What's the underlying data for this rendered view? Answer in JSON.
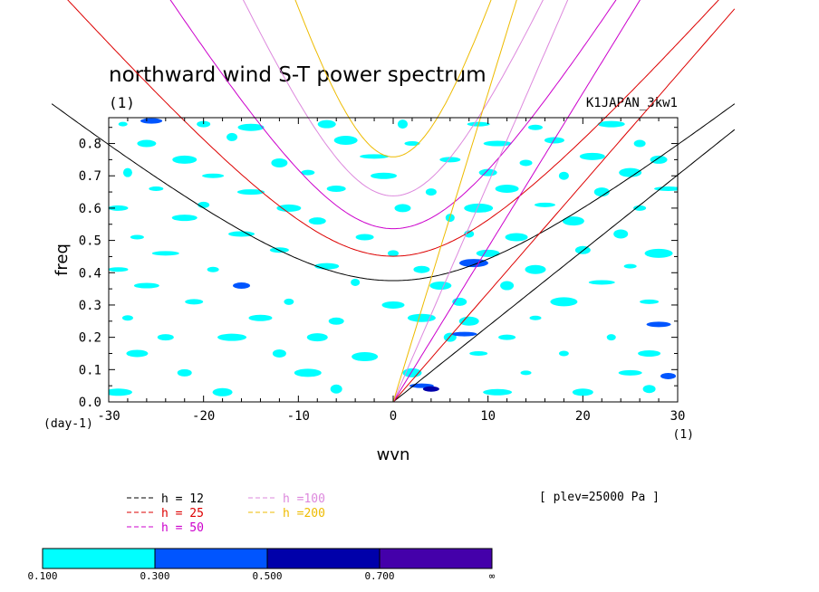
{
  "chart_data": {
    "type": "heatmap",
    "title": "northward wind S-T power spectrum",
    "subtitle_left": "(1)",
    "subtitle_right": "K1JAPAN_3kw1",
    "xlabel": "wvn",
    "ylabel": "freq",
    "x_unit_label": "(1)",
    "y_unit_label": "(day-1)",
    "xlim": [
      -30,
      30
    ],
    "ylim": [
      0.0,
      0.88
    ],
    "x_ticks": [
      -30,
      -20,
      -10,
      0,
      10,
      20,
      30
    ],
    "x_tick_labels": [
      "-30",
      "-20",
      "-10",
      "0",
      "10",
      "20",
      "30"
    ],
    "y_ticks": [
      0.0,
      0.1,
      0.2,
      0.3,
      0.4,
      0.5,
      0.6,
      0.7,
      0.8
    ],
    "y_tick_labels": [
      "0.0",
      "0.1",
      "0.2",
      "0.3",
      "0.4",
      "0.5",
      "0.6",
      "0.7",
      "0.8"
    ],
    "annotation": "[ plev=25000 Pa ]",
    "colorbar": {
      "levels": [
        "0.100",
        "0.300",
        "0.500",
        "0.700",
        "∞"
      ],
      "colors": [
        "#00ffff",
        "#0055ff",
        "#0000aa",
        "#4400aa"
      ]
    },
    "dispersion_curves": [
      {
        "label": "h = 12",
        "color": "#000000",
        "equivalent_depth_m": 12,
        "families": [
          "inertio-gravity n=1",
          "kelvin"
        ]
      },
      {
        "label": "h = 25",
        "color": "#dd0000",
        "equivalent_depth_m": 25,
        "families": [
          "inertio-gravity n=1",
          "kelvin"
        ]
      },
      {
        "label": "h = 50",
        "color": "#cc00cc",
        "equivalent_depth_m": 50,
        "families": [
          "inertio-gravity n=1",
          "kelvin"
        ]
      },
      {
        "label": "h =100",
        "color": "#dd88dd",
        "equivalent_depth_m": 100,
        "families": [
          "inertio-gravity n=1",
          "kelvin"
        ]
      },
      {
        "label": "h =200",
        "color": "#eebb00",
        "equivalent_depth_m": 200,
        "families": [
          "inertio-gravity n=1",
          "kelvin"
        ]
      }
    ],
    "power_patches": [
      {
        "x": -28.5,
        "y": 0.86,
        "level": 0
      },
      {
        "x": -25.5,
        "y": 0.87,
        "level": 1
      },
      {
        "x": -20,
        "y": 0.86,
        "level": 0
      },
      {
        "x": -15,
        "y": 0.85,
        "level": 0
      },
      {
        "x": -7,
        "y": 0.86,
        "level": 0
      },
      {
        "x": 1,
        "y": 0.86,
        "level": 0
      },
      {
        "x": 9,
        "y": 0.86,
        "level": 0
      },
      {
        "x": 15,
        "y": 0.85,
        "level": 0
      },
      {
        "x": 23,
        "y": 0.86,
        "level": 0
      },
      {
        "x": -26,
        "y": 0.8,
        "level": 0
      },
      {
        "x": -17,
        "y": 0.82,
        "level": 0
      },
      {
        "x": -5,
        "y": 0.81,
        "level": 0
      },
      {
        "x": 2,
        "y": 0.8,
        "level": 0
      },
      {
        "x": 11,
        "y": 0.8,
        "level": 0
      },
      {
        "x": 17,
        "y": 0.81,
        "level": 0
      },
      {
        "x": 26,
        "y": 0.8,
        "level": 0
      },
      {
        "x": -22,
        "y": 0.75,
        "level": 0
      },
      {
        "x": -12,
        "y": 0.74,
        "level": 0
      },
      {
        "x": -2,
        "y": 0.76,
        "level": 0
      },
      {
        "x": 6,
        "y": 0.75,
        "level": 0
      },
      {
        "x": 14,
        "y": 0.74,
        "level": 0
      },
      {
        "x": 21,
        "y": 0.76,
        "level": 0
      },
      {
        "x": 28,
        "y": 0.75,
        "level": 0
      },
      {
        "x": -28,
        "y": 0.71,
        "level": 0
      },
      {
        "x": -19,
        "y": 0.7,
        "level": 0
      },
      {
        "x": -9,
        "y": 0.71,
        "level": 0
      },
      {
        "x": -1,
        "y": 0.7,
        "level": 0
      },
      {
        "x": 10,
        "y": 0.71,
        "level": 0
      },
      {
        "x": 18,
        "y": 0.7,
        "level": 0
      },
      {
        "x": 25,
        "y": 0.71,
        "level": 0
      },
      {
        "x": -25,
        "y": 0.66,
        "level": 0
      },
      {
        "x": -15,
        "y": 0.65,
        "level": 0
      },
      {
        "x": -6,
        "y": 0.66,
        "level": 0
      },
      {
        "x": 4,
        "y": 0.65,
        "level": 0
      },
      {
        "x": 12,
        "y": 0.66,
        "level": 0
      },
      {
        "x": 22,
        "y": 0.65,
        "level": 0
      },
      {
        "x": 29,
        "y": 0.66,
        "level": 0
      },
      {
        "x": -29,
        "y": 0.6,
        "level": 0
      },
      {
        "x": -20,
        "y": 0.61,
        "level": 0
      },
      {
        "x": -11,
        "y": 0.6,
        "level": 0
      },
      {
        "x": 1,
        "y": 0.6,
        "level": 0
      },
      {
        "x": 9,
        "y": 0.6,
        "level": 0
      },
      {
        "x": 16,
        "y": 0.61,
        "level": 0
      },
      {
        "x": 26,
        "y": 0.6,
        "level": 0
      },
      {
        "x": -22,
        "y": 0.57,
        "level": 0
      },
      {
        "x": -8,
        "y": 0.56,
        "level": 0
      },
      {
        "x": 6,
        "y": 0.57,
        "level": 0
      },
      {
        "x": 19,
        "y": 0.56,
        "level": 0
      },
      {
        "x": -27,
        "y": 0.51,
        "level": 0
      },
      {
        "x": -16,
        "y": 0.52,
        "level": 0
      },
      {
        "x": -3,
        "y": 0.51,
        "level": 0
      },
      {
        "x": 8,
        "y": 0.52,
        "level": 0
      },
      {
        "x": 13,
        "y": 0.51,
        "level": 0
      },
      {
        "x": 24,
        "y": 0.52,
        "level": 0
      },
      {
        "x": -24,
        "y": 0.46,
        "level": 0
      },
      {
        "x": -12,
        "y": 0.47,
        "level": 0
      },
      {
        "x": 0,
        "y": 0.46,
        "level": 0
      },
      {
        "x": 10,
        "y": 0.46,
        "level": 0
      },
      {
        "x": 20,
        "y": 0.47,
        "level": 0
      },
      {
        "x": 28,
        "y": 0.46,
        "level": 0
      },
      {
        "x": -29,
        "y": 0.41,
        "level": 0
      },
      {
        "x": -19,
        "y": 0.41,
        "level": 0
      },
      {
        "x": -7,
        "y": 0.42,
        "level": 0
      },
      {
        "x": 3,
        "y": 0.41,
        "level": 0
      },
      {
        "x": 8.5,
        "y": 0.43,
        "level": 1
      },
      {
        "x": 15,
        "y": 0.41,
        "level": 0
      },
      {
        "x": 25,
        "y": 0.42,
        "level": 0
      },
      {
        "x": -26,
        "y": 0.36,
        "level": 0
      },
      {
        "x": -16,
        "y": 0.36,
        "level": 1
      },
      {
        "x": -4,
        "y": 0.37,
        "level": 0
      },
      {
        "x": 5,
        "y": 0.36,
        "level": 0
      },
      {
        "x": 12,
        "y": 0.36,
        "level": 0
      },
      {
        "x": 22,
        "y": 0.37,
        "level": 0
      },
      {
        "x": -21,
        "y": 0.31,
        "level": 0
      },
      {
        "x": -11,
        "y": 0.31,
        "level": 0
      },
      {
        "x": 0,
        "y": 0.3,
        "level": 0
      },
      {
        "x": 7,
        "y": 0.31,
        "level": 0
      },
      {
        "x": 18,
        "y": 0.31,
        "level": 0
      },
      {
        "x": 27,
        "y": 0.31,
        "level": 0
      },
      {
        "x": -28,
        "y": 0.26,
        "level": 0
      },
      {
        "x": -14,
        "y": 0.26,
        "level": 0
      },
      {
        "x": -6,
        "y": 0.25,
        "level": 0
      },
      {
        "x": 3,
        "y": 0.26,
        "level": 0
      },
      {
        "x": 8,
        "y": 0.25,
        "level": 0
      },
      {
        "x": 15,
        "y": 0.26,
        "level": 0
      },
      {
        "x": 28,
        "y": 0.24,
        "level": 1
      },
      {
        "x": -24,
        "y": 0.2,
        "level": 0
      },
      {
        "x": -17,
        "y": 0.2,
        "level": 0
      },
      {
        "x": -8,
        "y": 0.2,
        "level": 0
      },
      {
        "x": 6,
        "y": 0.2,
        "level": 0
      },
      {
        "x": 7.5,
        "y": 0.21,
        "level": 1
      },
      {
        "x": 12,
        "y": 0.2,
        "level": 0
      },
      {
        "x": 23,
        "y": 0.2,
        "level": 0
      },
      {
        "x": -27,
        "y": 0.15,
        "level": 0
      },
      {
        "x": -12,
        "y": 0.15,
        "level": 0
      },
      {
        "x": -3,
        "y": 0.14,
        "level": 0
      },
      {
        "x": 9,
        "y": 0.15,
        "level": 0
      },
      {
        "x": 18,
        "y": 0.15,
        "level": 0
      },
      {
        "x": 27,
        "y": 0.15,
        "level": 0
      },
      {
        "x": -22,
        "y": 0.09,
        "level": 0
      },
      {
        "x": -9,
        "y": 0.09,
        "level": 0
      },
      {
        "x": 2,
        "y": 0.09,
        "level": 0
      },
      {
        "x": 14,
        "y": 0.09,
        "level": 0
      },
      {
        "x": 25,
        "y": 0.09,
        "level": 0
      },
      {
        "x": 29,
        "y": 0.08,
        "level": 1
      },
      {
        "x": -29,
        "y": 0.03,
        "level": 0
      },
      {
        "x": -18,
        "y": 0.03,
        "level": 0
      },
      {
        "x": -6,
        "y": 0.04,
        "level": 0
      },
      {
        "x": 3,
        "y": 0.05,
        "level": 1
      },
      {
        "x": 4,
        "y": 0.04,
        "level": 2
      },
      {
        "x": 11,
        "y": 0.03,
        "level": 0
      },
      {
        "x": 20,
        "y": 0.03,
        "level": 0
      },
      {
        "x": 27,
        "y": 0.04,
        "level": 0
      }
    ]
  }
}
